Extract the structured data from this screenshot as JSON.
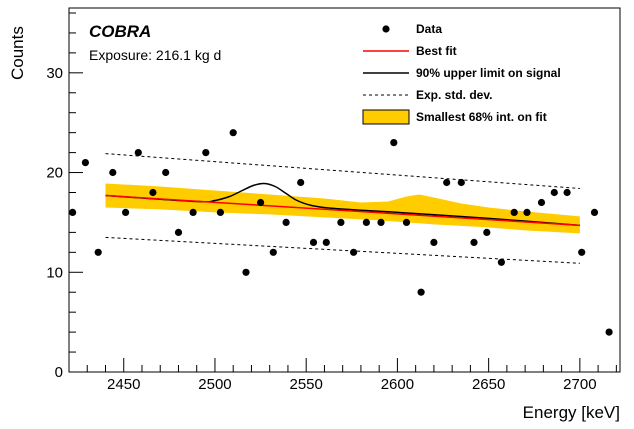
{
  "chart_data": {
    "type": "scatter",
    "xlabel": "Energy [keV]",
    "ylabel": "Counts",
    "xlim": [
      2420,
      2722
    ],
    "ylim": [
      0,
      36.5
    ],
    "x_ticks": [
      2450,
      2500,
      2550,
      2600,
      2650,
      2700
    ],
    "y_ticks": [
      0,
      10,
      20,
      30
    ],
    "annotations": {
      "title": "COBRA",
      "subtitle": "Exposure: 216.1 kg d"
    },
    "legend_position": "top-right",
    "legend": [
      {
        "label": "Data",
        "style": "marker"
      },
      {
        "label": "Best fit",
        "style": "line",
        "color": "#ff0000"
      },
      {
        "label": "90% upper limit on signal",
        "style": "line",
        "color": "#000000"
      },
      {
        "label": "Exp. std. dev.",
        "style": "dashed",
        "color": "#000000"
      },
      {
        "label": "Smallest 68% int. on fit",
        "style": "box",
        "color": "#ffcc00"
      }
    ],
    "series": [
      {
        "name": "Data",
        "points": [
          [
            2422,
            16
          ],
          [
            2429,
            21
          ],
          [
            2436,
            12
          ],
          [
            2444,
            20
          ],
          [
            2451,
            16
          ],
          [
            2458,
            22
          ],
          [
            2466,
            18
          ],
          [
            2473,
            20
          ],
          [
            2480,
            14
          ],
          [
            2488,
            16
          ],
          [
            2495,
            22
          ],
          [
            2503,
            16
          ],
          [
            2510,
            24
          ],
          [
            2517,
            10
          ],
          [
            2525,
            17
          ],
          [
            2532,
            12
          ],
          [
            2539,
            15
          ],
          [
            2547,
            19
          ],
          [
            2554,
            13
          ],
          [
            2561,
            13
          ],
          [
            2569,
            15
          ],
          [
            2576,
            12
          ],
          [
            2583,
            15
          ],
          [
            2591,
            15
          ],
          [
            2598,
            23
          ],
          [
            2605,
            15
          ],
          [
            2613,
            8
          ],
          [
            2620,
            13
          ],
          [
            2627,
            19
          ],
          [
            2635,
            19
          ],
          [
            2642,
            13
          ],
          [
            2649,
            14
          ],
          [
            2657,
            11
          ],
          [
            2664,
            16
          ],
          [
            2671,
            16
          ],
          [
            2679,
            17
          ],
          [
            2686,
            18
          ],
          [
            2693,
            18
          ],
          [
            2701,
            12
          ],
          [
            2708,
            16
          ],
          [
            2716,
            4
          ]
        ]
      },
      {
        "name": "Best fit",
        "points": [
          [
            2440,
            17.7
          ],
          [
            2700,
            14.7
          ]
        ]
      },
      {
        "name": "90% upper limit on signal",
        "points": [
          [
            2440,
            17.7
          ],
          [
            2490,
            17.1
          ],
          [
            2500,
            17.2
          ],
          [
            2508,
            17.6
          ],
          [
            2515,
            18.2
          ],
          [
            2521,
            18.7
          ],
          [
            2527,
            18.9
          ],
          [
            2533,
            18.6
          ],
          [
            2539,
            17.9
          ],
          [
            2545,
            17.2
          ],
          [
            2553,
            16.7
          ],
          [
            2565,
            16.4
          ],
          [
            2600,
            16.0
          ],
          [
            2650,
            15.4
          ],
          [
            2700,
            14.7
          ]
        ]
      },
      {
        "name": "Exp. std. dev. upper",
        "points": [
          [
            2440,
            21.9
          ],
          [
            2700,
            18.4
          ]
        ]
      },
      {
        "name": "Exp. std. dev. lower",
        "points": [
          [
            2440,
            13.5
          ],
          [
            2700,
            10.9
          ]
        ]
      },
      {
        "name": "Smallest 68% int. on fit",
        "upper": [
          [
            2440,
            18.9
          ],
          [
            2470,
            18.6
          ],
          [
            2500,
            18.2
          ],
          [
            2530,
            17.8
          ],
          [
            2560,
            17.4
          ],
          [
            2580,
            17.0
          ],
          [
            2595,
            17.1
          ],
          [
            2605,
            17.6
          ],
          [
            2612,
            17.8
          ],
          [
            2620,
            17.5
          ],
          [
            2635,
            16.9
          ],
          [
            2650,
            16.5
          ],
          [
            2670,
            16.1
          ],
          [
            2700,
            15.6
          ]
        ],
        "lower": [
          [
            2440,
            16.5
          ],
          [
            2470,
            16.3
          ],
          [
            2500,
            16.0
          ],
          [
            2530,
            15.8
          ],
          [
            2560,
            15.5
          ],
          [
            2590,
            15.2
          ],
          [
            2620,
            14.8
          ],
          [
            2650,
            14.5
          ],
          [
            2670,
            14.2
          ],
          [
            2700,
            13.9
          ]
        ]
      }
    ]
  }
}
